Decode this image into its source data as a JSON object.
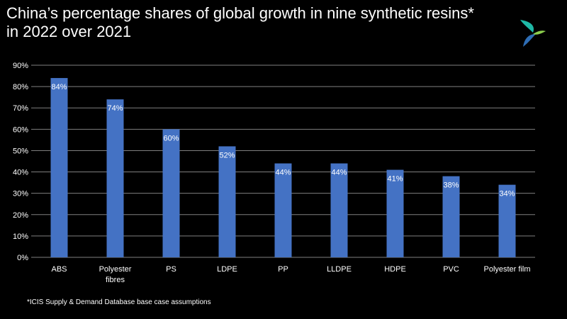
{
  "header": {
    "title_line1": "China’s percentage shares of global growth in nine synthetic resins*",
    "title_line2": "in 2022 over 2021"
  },
  "footnote": "*ICIS Supply & Demand Database base case assumptions",
  "logo": {
    "icon": "icis-logo-icon",
    "colors": [
      "#1fb8a6",
      "#2e6db4",
      "#8ccf4d"
    ]
  },
  "chart_data": {
    "type": "bar",
    "title": "China’s percentage shares of global growth in nine synthetic resins* in 2022 over 2021",
    "categories": [
      [
        "ABS"
      ],
      [
        "Polyester",
        "fibres"
      ],
      [
        "PS"
      ],
      [
        "LDPE"
      ],
      [
        "PP"
      ],
      [
        "LLDPE"
      ],
      [
        "HDPE"
      ],
      [
        "PVC"
      ],
      [
        "Polyester film"
      ]
    ],
    "values": [
      84,
      74,
      60,
      52,
      44,
      44,
      41,
      38,
      34
    ],
    "data_labels": [
      "84%",
      "74%",
      "60%",
      "52%",
      "44%",
      "44%",
      "41%",
      "38%",
      "34%"
    ],
    "ylim": [
      0,
      90
    ],
    "yticks": [
      0,
      10,
      20,
      30,
      40,
      50,
      60,
      70,
      80,
      90
    ],
    "ytick_labels": [
      "0%",
      "10%",
      "20%",
      "30%",
      "40%",
      "50%",
      "60%",
      "70%",
      "80%",
      "90%"
    ],
    "grid": true,
    "bar_color": "#4472c4",
    "grid_color": "#7f7f7f"
  }
}
